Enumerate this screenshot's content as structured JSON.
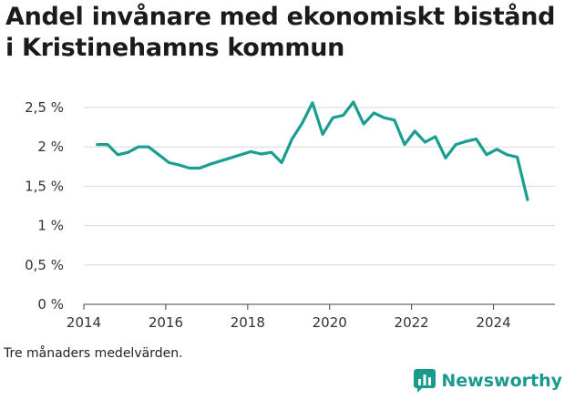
{
  "title": "Andel invånare med ekonomiskt bistånd i Kristinehamns kommun",
  "footnote": "Tre månaders medelvärden.",
  "brand": {
    "name": "Newsworthy",
    "icon": "bar-chart-speech-icon",
    "color": "#1a9a8c"
  },
  "colors": {
    "line": "#1a9e8f",
    "grid": "#d9d9d9",
    "axis": "#444444"
  },
  "chart_data": {
    "type": "line",
    "title": "Andel invånare med ekonomiskt bistånd i Kristinehamns kommun",
    "xlabel": "",
    "ylabel": "",
    "xlim": [
      2014,
      2025.5
    ],
    "ylim": [
      0,
      2.5
    ],
    "yticks": [
      {
        "value": 0,
        "label": "0 %"
      },
      {
        "value": 0.5,
        "label": "0,5 %"
      },
      {
        "value": 1,
        "label": "1 %"
      },
      {
        "value": 1.5,
        "label": "1,5 %"
      },
      {
        "value": 2,
        "label": "2 %"
      },
      {
        "value": 2.5,
        "label": "2,5 %"
      }
    ],
    "xticks": [
      {
        "value": 2014,
        "label": "2014"
      },
      {
        "value": 2016,
        "label": "2016"
      },
      {
        "value": 2018,
        "label": "2018"
      },
      {
        "value": 2020,
        "label": "2020"
      },
      {
        "value": 2022,
        "label": "2022"
      },
      {
        "value": 2024,
        "label": "2024"
      }
    ],
    "grid": true,
    "series": [
      {
        "x": [
          2014.33,
          2014.58,
          2014.83,
          2015.08,
          2015.33,
          2015.58,
          2015.83,
          2016.08,
          2016.33,
          2016.58,
          2016.83,
          2017.08,
          2017.33,
          2017.58,
          2017.83,
          2018.08,
          2018.33,
          2018.58,
          2018.83,
          2019.08,
          2019.33,
          2019.58,
          2019.83,
          2020.08,
          2020.33,
          2020.58,
          2020.83,
          2021.08,
          2021.33,
          2021.58,
          2021.83,
          2022.08,
          2022.33,
          2022.58,
          2022.83,
          2023.08,
          2023.33,
          2023.58,
          2023.83,
          2024.08,
          2024.33,
          2024.58,
          2024.83
        ],
        "y": [
          2.03,
          2.03,
          1.9,
          1.93,
          2.0,
          2.0,
          1.9,
          1.8,
          1.77,
          1.73,
          1.73,
          1.78,
          1.82,
          1.86,
          1.9,
          1.94,
          1.91,
          1.93,
          1.8,
          2.1,
          2.3,
          2.56,
          2.16,
          2.37,
          2.4,
          2.57,
          2.29,
          2.43,
          2.37,
          2.34,
          2.03,
          2.2,
          2.06,
          2.13,
          1.86,
          2.03,
          2.07,
          2.1,
          1.9,
          1.97,
          1.9,
          1.87,
          1.33
        ]
      }
    ]
  }
}
